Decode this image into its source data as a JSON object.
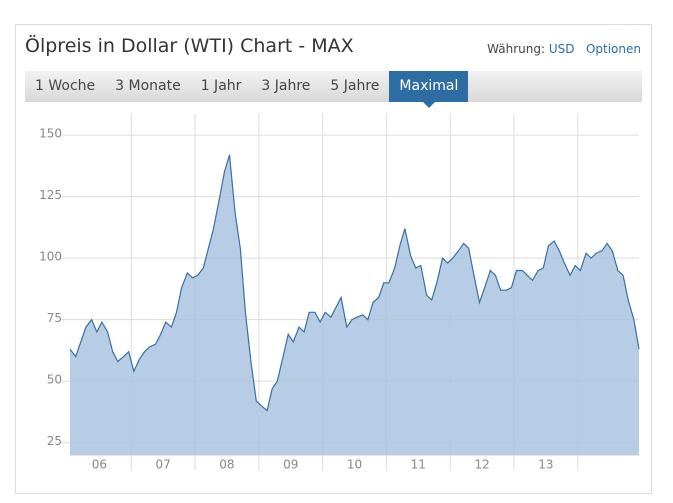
{
  "widget": {
    "title": "Ölpreis in Dollar (WTI) Chart - MAX",
    "currency_label": "Währung:",
    "currency": "USD",
    "options": "Optionen",
    "tabs": [
      "1 Woche",
      "3 Monate",
      "1 Jahr",
      "3 Jahre",
      "5 Jahre",
      "Maximal"
    ],
    "active_tab": 5
  },
  "chart_data": {
    "type": "area",
    "color": "#3a6ea5",
    "fill": "#a9c4e0",
    "x": [
      2006.04,
      2006.13,
      2006.21,
      2006.29,
      2006.38,
      2006.46,
      2006.54,
      2006.63,
      2006.71,
      2006.79,
      2006.88,
      2006.96,
      2007.04,
      2007.13,
      2007.21,
      2007.29,
      2007.38,
      2007.46,
      2007.54,
      2007.63,
      2007.71,
      2007.79,
      2007.88,
      2007.96,
      2008.04,
      2008.13,
      2008.21,
      2008.29,
      2008.38,
      2008.46,
      2008.54,
      2008.63,
      2008.71,
      2008.79,
      2008.88,
      2008.96,
      2009.04,
      2009.13,
      2009.21,
      2009.29,
      2009.38,
      2009.46,
      2009.54,
      2009.63,
      2009.71,
      2009.79,
      2009.88,
      2009.96,
      2010.04,
      2010.13,
      2010.21,
      2010.29,
      2010.38,
      2010.46,
      2010.54,
      2010.63,
      2010.71,
      2010.79,
      2010.88,
      2010.96,
      2011.04,
      2011.13,
      2011.21,
      2011.29,
      2011.38,
      2011.46,
      2011.54,
      2011.63,
      2011.71,
      2011.79,
      2011.88,
      2011.96,
      2012.04,
      2012.13,
      2012.21,
      2012.29,
      2012.38,
      2012.46,
      2012.54,
      2012.63,
      2012.71,
      2012.79,
      2012.88,
      2012.96,
      2013.04,
      2013.13,
      2013.21,
      2013.29,
      2013.38,
      2013.46,
      2013.54,
      2013.63,
      2013.71,
      2013.79,
      2013.88,
      2013.96,
      2014.04,
      2014.13,
      2014.21,
      2014.29,
      2014.38,
      2014.46,
      2014.54,
      2014.63,
      2014.71,
      2014.79,
      2014.88,
      2014.96
    ],
    "values": [
      63,
      60,
      66,
      72,
      75,
      70,
      74,
      70,
      62,
      58,
      60,
      62,
      54,
      59,
      62,
      64,
      65,
      69,
      74,
      72,
      78,
      88,
      94,
      92,
      93,
      96,
      104,
      112,
      124,
      135,
      142,
      118,
      104,
      78,
      57,
      42,
      40,
      38,
      47,
      50,
      60,
      69,
      66,
      72,
      70,
      78,
      78,
      74,
      78,
      76,
      80,
      84,
      72,
      75,
      76,
      77,
      75,
      82,
      84,
      90,
      90,
      96,
      105,
      112,
      101,
      96,
      97,
      85,
      83,
      90,
      100,
      98,
      100,
      103,
      106,
      104,
      92,
      82,
      88,
      95,
      93,
      87,
      87,
      88,
      95,
      95,
      93,
      91,
      95,
      96,
      105,
      107,
      103,
      98,
      93,
      97,
      95,
      102,
      100,
      102,
      103,
      106,
      103,
      95,
      93,
      83,
      75,
      63
    ],
    "xlim": [
      2006.04,
      2014.96
    ],
    "ylim": [
      20,
      159
    ],
    "yticks": [
      25,
      50,
      75,
      100,
      125,
      150
    ],
    "xticks": [
      {
        "value": 2006.5,
        "label": "06"
      },
      {
        "value": 2007.5,
        "label": "07"
      },
      {
        "value": 2008.5,
        "label": "08"
      },
      {
        "value": 2009.5,
        "label": "09"
      },
      {
        "value": 2010.5,
        "label": "10"
      },
      {
        "value": 2011.5,
        "label": "11"
      },
      {
        "value": 2012.5,
        "label": "12"
      },
      {
        "value": 2013.5,
        "label": "13"
      }
    ],
    "xgrid": [
      2007,
      2008,
      2009,
      2010,
      2011,
      2012,
      2013,
      2014
    ],
    "grid": true
  }
}
